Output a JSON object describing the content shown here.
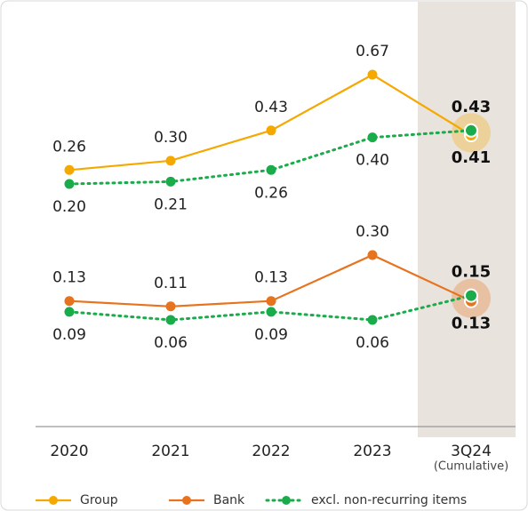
{
  "chart_data": {
    "type": "line",
    "categories": [
      "2020",
      "2021",
      "2022",
      "2023",
      "3Q24"
    ],
    "category_note": "(Cumulative)",
    "excl_name": "excl. non-recurring items",
    "excl_color": "#1aab4b",
    "series": [
      {
        "name": "Group",
        "color": "#f5a800",
        "values": [
          0.26,
          0.3,
          0.43,
          0.67,
          0.41
        ],
        "excl_values": [
          0.2,
          0.21,
          0.26,
          0.4,
          0.43
        ]
      },
      {
        "name": "Bank",
        "color": "#e8731f",
        "values": [
          0.13,
          0.11,
          0.13,
          0.3,
          0.13
        ],
        "excl_values": [
          0.09,
          0.06,
          0.09,
          0.06,
          0.15
        ]
      }
    ]
  }
}
